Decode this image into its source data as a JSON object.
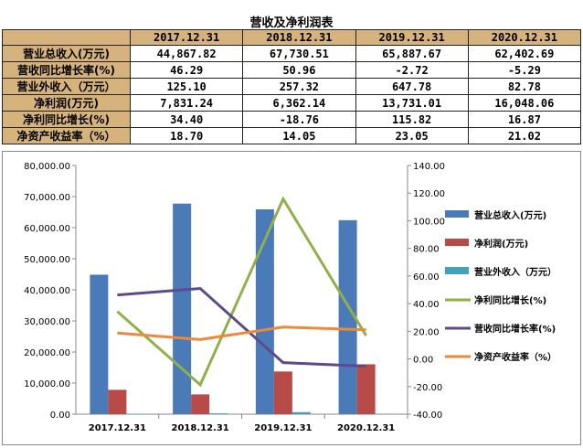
{
  "table": {
    "title": "营收及净利润表",
    "headers": [
      "",
      "2017.12.31",
      "2018.12.31",
      "2019.12.31",
      "2020.12.31"
    ],
    "rows": [
      {
        "label": "营业总收入(万元)",
        "values": [
          "44,867.82",
          "67,730.51",
          "65,887.67",
          "62,402.69"
        ]
      },
      {
        "label": "营收同比增长率(%)",
        "values": [
          "46.29",
          "50.96",
          "-2.72",
          "-5.29"
        ]
      },
      {
        "label": "营业外收入（万元）",
        "values": [
          "125.10",
          "257.32",
          "647.78",
          "82.78"
        ]
      },
      {
        "label": "净利润(万元)",
        "values": [
          "7,831.24",
          "6,362.14",
          "13,731.01",
          "16,048.06"
        ]
      },
      {
        "label": "净利同比增长(%)",
        "values": [
          "34.40",
          "-18.76",
          "115.82",
          "16.87"
        ]
      },
      {
        "label": "净资产收益率（%）",
        "values": [
          "18.70",
          "14.05",
          "23.05",
          "21.02"
        ]
      }
    ]
  },
  "chart_data": {
    "type": "bar+line",
    "categories": [
      "2017.12.31",
      "2018.12.31",
      "2019.12.31",
      "2020.12.31"
    ],
    "ylim_left": [
      0,
      80000
    ],
    "ylim_right": [
      -40,
      140
    ],
    "yticks_left": [
      "0.00",
      "10,000.00",
      "20,000.00",
      "30,000.00",
      "40,000.00",
      "50,000.00",
      "60,000.00",
      "70,000.00",
      "80,000.00"
    ],
    "yticks_right": [
      "-40.00",
      "-20.00",
      "0.00",
      "20.00",
      "40.00",
      "60.00",
      "80.00",
      "100.00",
      "120.00",
      "140.00"
    ],
    "legend_position": "right",
    "grid": false,
    "bar_series": [
      {
        "name": "营业总收入(万元)",
        "color": "#4a7ab8",
        "values": [
          44867.82,
          67730.51,
          65887.67,
          62402.69
        ]
      },
      {
        "name": "净利润(万元)",
        "color": "#b84a48",
        "values": [
          7831.24,
          6362.14,
          13731.01,
          16048.06
        ]
      },
      {
        "name": "营业外收入（万元）",
        "color": "#45a0b8",
        "values": [
          125.1,
          257.32,
          647.78,
          82.78
        ]
      }
    ],
    "line_series": [
      {
        "name": "净利同比增长(%)",
        "color": "#8fb04a",
        "values": [
          34.4,
          -18.76,
          115.82,
          16.87
        ]
      },
      {
        "name": "营收同比增长率(%)",
        "color": "#5e4a8a",
        "values": [
          46.29,
          50.96,
          -2.72,
          -5.29
        ]
      },
      {
        "name": "净资产收益率（%）",
        "color": "#ec8a3a",
        "values": [
          18.7,
          14.05,
          23.05,
          21.02
        ]
      }
    ]
  }
}
